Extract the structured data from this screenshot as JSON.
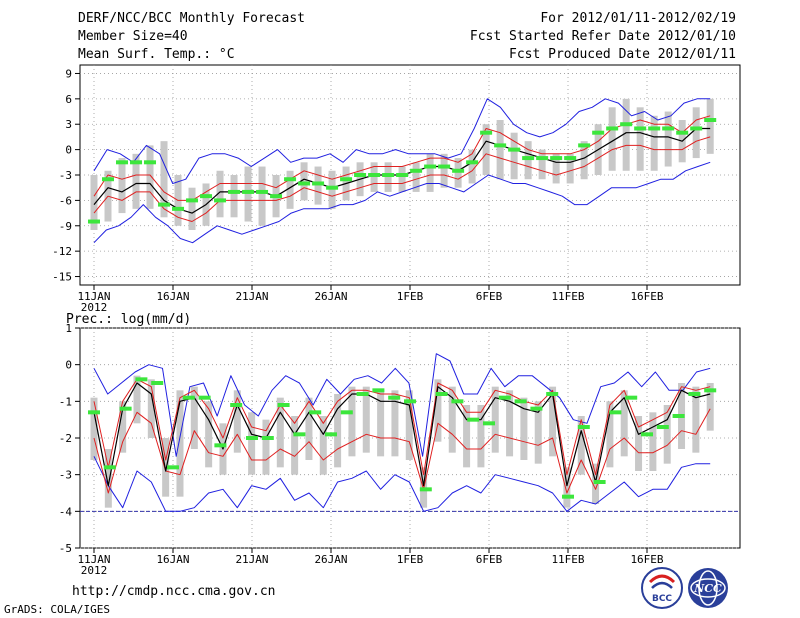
{
  "header": {
    "title": "DERF/NCC/BCC Monthly Forecast",
    "member_size": "Member Size=40",
    "variable": "Mean Surf. Temp.: °C",
    "period": "For 2012/01/11-2012/02/19",
    "started": "Fcst Started Refer Date 2012/01/10",
    "produced": "Fcst Produced Date 2012/01/11"
  },
  "footer": {
    "url": "http://cmdp.ncc.cma.gov.cn",
    "grads": "GrADS: COLA/IGES",
    "logo_bcc": "BCC",
    "logo_ncc": "NCC"
  },
  "colors": {
    "mean": "#000000",
    "spread": "#e02020",
    "envelope": "#2020e0",
    "box": "#c8c8c8",
    "observed": "#3ce63c",
    "grid": "#999999",
    "baseline": "#3333aa"
  },
  "chart_data": [
    {
      "type": "line",
      "title": "Mean Surf. Temp.: °C",
      "xlabel": "",
      "ylabel": "",
      "x_ticks": [
        "11JAN",
        "16JAN",
        "21JAN",
        "26JAN",
        "1FEB",
        "6FEB",
        "11FEB",
        "16FEB"
      ],
      "year_label": "2012",
      "y_ticks": [
        "9",
        "6",
        "3",
        "0",
        "-3",
        "-6",
        "-9",
        "-12",
        "-15"
      ],
      "ylim": [
        -16,
        10
      ],
      "days": 40,
      "series": [
        {
          "name": "max",
          "values": [
            -11,
            -9.5,
            -9,
            -8,
            -6.5,
            -8,
            -9,
            -10.5,
            -11,
            -10,
            -9,
            -9.5,
            -10,
            -9.5,
            -9,
            -8.5,
            -7.5,
            -7,
            -7,
            -7,
            -6.5,
            -6.5,
            -6,
            -5,
            -5.5,
            -5,
            -4.5,
            -4,
            -4,
            -4.5,
            -5,
            -4,
            -3,
            -3.5,
            -4,
            -4,
            -4.5,
            -5,
            -5.5,
            -6.5,
            -6.5,
            -5.5,
            -4.5,
            -4.5,
            -4.5,
            -4,
            -3.5,
            -3.5,
            -2.5,
            -2,
            -1.5
          ]
        },
        {
          "name": "min",
          "values": [
            -2.5,
            0,
            -0.5,
            -1.5,
            0.5,
            -0.5,
            -4,
            -3.5,
            -1,
            -0.5,
            -0.5,
            -1,
            -2,
            -1,
            0,
            -1.5,
            -1,
            -1,
            -0.5,
            -1.5,
            0,
            -0.5,
            -0.5,
            0,
            -0.5,
            -0.5,
            -0.5,
            -1,
            -0.5,
            2.5,
            6,
            5,
            3,
            2,
            1.5,
            2,
            3,
            4.5,
            5,
            6,
            5.5,
            4,
            4.5,
            3.5,
            4,
            5.5,
            6,
            6
          ]
        },
        {
          "name": "mean",
          "values": [
            -6.5,
            -4.5,
            -5,
            -4,
            -4,
            -6,
            -7,
            -7.5,
            -6.5,
            -5,
            -5,
            -5,
            -5,
            -5.5,
            -4.5,
            -3.5,
            -4,
            -4.5,
            -4,
            -3.5,
            -3,
            -3,
            -3,
            -2.5,
            -2,
            -2,
            -2.5,
            -1.5,
            1,
            0.5,
            0,
            -0.5,
            -1,
            -1.5,
            -1.5,
            -1,
            0,
            1,
            2,
            2,
            1.5,
            1.5,
            1,
            2.5,
            2.5
          ]
        },
        {
          "name": "upper",
          "values": [
            -5.5,
            -3,
            -3.5,
            -3,
            -3,
            -5,
            -6,
            -6,
            -5,
            -4,
            -4,
            -4,
            -4,
            -4.5,
            -3.5,
            -2.5,
            -3,
            -3.5,
            -3,
            -2.5,
            -2,
            -2,
            -2,
            -1.5,
            -1,
            -1,
            -1.5,
            -0.5,
            2.5,
            2,
            1,
            0,
            -0.5,
            -0.5,
            -0.5,
            0,
            1,
            2.5,
            3,
            3.5,
            3,
            3,
            2,
            3.5,
            4
          ]
        },
        {
          "name": "lower",
          "values": [
            -7.5,
            -5.5,
            -6,
            -5,
            -5,
            -7,
            -8,
            -8.5,
            -7.5,
            -6,
            -6,
            -6,
            -6,
            -6,
            -5.5,
            -4.5,
            -5,
            -5.5,
            -5,
            -4.5,
            -4,
            -4,
            -4,
            -3.5,
            -3,
            -3,
            -3.5,
            -2.5,
            -0.5,
            -1,
            -1.5,
            -2,
            -2.5,
            -3,
            -2.5,
            -2,
            -1,
            0,
            0.5,
            0.5,
            0,
            0,
            0,
            1,
            1.5
          ]
        },
        {
          "name": "box_top",
          "values": [
            -3,
            -2.5,
            -1,
            -0.5,
            0.5,
            1,
            -3,
            -4.5,
            -4,
            -2.5,
            -3,
            -2,
            -2,
            -3,
            -2.5,
            -1.5,
            -2,
            -2.5,
            -2,
            -1.5,
            -1.5,
            -1.5,
            -2,
            -1.5,
            -0.5,
            -0.5,
            -1,
            0,
            3,
            3.5,
            2,
            1,
            0,
            -0.5,
            -0.5,
            1,
            3,
            5,
            6,
            5,
            4,
            4.5,
            3.5,
            5,
            6
          ]
        },
        {
          "name": "box_bottom",
          "values": [
            -9.5,
            -8.5,
            -7.5,
            -7,
            -7,
            -8,
            -9,
            -9.5,
            -9,
            -8,
            -8,
            -8.5,
            -9,
            -8,
            -7,
            -6,
            -6.5,
            -7,
            -6,
            -5.5,
            -5,
            -5,
            -5,
            -5,
            -5,
            -4.5,
            -4.5,
            -4,
            -3,
            -3.5,
            -3.5,
            -3.5,
            -3.5,
            -4,
            -4,
            -3.5,
            -3,
            -2.5,
            -2.5,
            -2.5,
            -2.5,
            -2,
            -1.5,
            -1,
            -0.5
          ]
        },
        {
          "name": "observed",
          "values": [
            -8.5,
            -3.5,
            -1.5,
            -1.5,
            -1.5,
            -6.5,
            -7,
            -6,
            -5.5,
            -6,
            -5,
            -5,
            -5,
            -5.5,
            -3.5,
            -4,
            -4,
            -4.5,
            -3.5,
            -3,
            -3,
            -3,
            -3,
            -2.5,
            -2,
            -2,
            -2.5,
            -1.5,
            2,
            0.5,
            0,
            -1,
            -1,
            -1,
            -1,
            0.5,
            2,
            2.5,
            3,
            2.5,
            2.5,
            2.5,
            2,
            2.5,
            3.5
          ]
        }
      ]
    },
    {
      "type": "line",
      "title": "Prec.: log(mm/d)",
      "xlabel": "",
      "ylabel": "",
      "x_ticks": [
        "11JAN",
        "16JAN",
        "21JAN",
        "26JAN",
        "1FEB",
        "6FEB",
        "11FEB",
        "16FEB"
      ],
      "year_label": "2012",
      "y_ticks": [
        "1",
        "0",
        "-1",
        "-2",
        "-3",
        "-4",
        "-5"
      ],
      "ylim": [
        -5,
        1
      ],
      "days": 40,
      "baseline": -4,
      "series": [
        {
          "name": "max",
          "values": [
            -0.1,
            -0.8,
            -0.5,
            -0.2,
            0,
            -0.1,
            -2.5,
            -0.6,
            -0.5,
            -1.4,
            -0.3,
            -1.1,
            -1.4,
            -0.7,
            -0.3,
            -0.5,
            -1.1,
            -0.4,
            -0.8,
            -0.4,
            -0.3,
            -0.5,
            -0.1,
            -0.5,
            -2.5,
            0.3,
            0.1,
            -0.8,
            -0.8,
            -0.1,
            -0.6,
            -0.3,
            -0.3,
            -0.6,
            -0.9,
            -1.5,
            -1.6,
            -0.6,
            -0.5,
            -0.2,
            -0.6,
            -0.2,
            -0.7,
            -0.7,
            -0.2,
            -0.1
          ]
        },
        {
          "name": "mean",
          "values": [
            -1.3,
            -3.3,
            -1.2,
            -0.5,
            -0.8,
            -2.9,
            -1,
            -0.9,
            -1.5,
            -2.3,
            -1.1,
            -1.9,
            -2,
            -1.3,
            -1.9,
            -1.3,
            -1.9,
            -1.2,
            -0.8,
            -0.8,
            -1,
            -1,
            -1.1,
            -3.3,
            -0.6,
            -0.9,
            -1.5,
            -1.5,
            -0.9,
            -1,
            -1.2,
            -1.3,
            -0.8,
            -3.3,
            -1.8,
            -3.2,
            -1.3,
            -0.9,
            -1.9,
            -1.7,
            -1.5,
            -0.7,
            -0.9,
            -0.8
          ]
        },
        {
          "name": "upper",
          "values": [
            -1,
            -2.8,
            -1,
            -0.4,
            -0.6,
            -2.6,
            -0.9,
            -0.7,
            -1.2,
            -2,
            -0.9,
            -1.7,
            -1.8,
            -1.1,
            -1.6,
            -1,
            -1.6,
            -1,
            -0.7,
            -0.7,
            -0.8,
            -0.8,
            -0.9,
            -3,
            -0.5,
            -0.7,
            -1.3,
            -1.3,
            -0.7,
            -0.8,
            -1,
            -1.1,
            -0.7,
            -3,
            -1.5,
            -3,
            -1.1,
            -0.7,
            -1.7,
            -1.5,
            -1.3,
            -0.6,
            -0.7,
            -0.6
          ]
        },
        {
          "name": "lower",
          "values": [
            -2,
            -3.5,
            -2.1,
            -1.3,
            -1.6,
            -2.9,
            -3,
            -1.8,
            -2.4,
            -2.5,
            -1.9,
            -2.6,
            -2.6,
            -2.3,
            -2.5,
            -2.1,
            -2.6,
            -2.3,
            -2.1,
            -1.9,
            -2,
            -2,
            -2.1,
            -3.4,
            -1.6,
            -1.9,
            -2.3,
            -2.3,
            -1.9,
            -2,
            -2.1,
            -2.2,
            -2,
            -3.5,
            -2.6,
            -3.4,
            -2.3,
            -2,
            -2.4,
            -2.4,
            -2.2,
            -1.8,
            -1.9,
            -1.2
          ]
        },
        {
          "name": "min",
          "values": [
            -2.5,
            -3.3,
            -3.9,
            -2.9,
            -3.2,
            -4,
            -4,
            -3.9,
            -3.5,
            -3.4,
            -3.9,
            -3.3,
            -3.4,
            -3.1,
            -3.7,
            -3.5,
            -3.9,
            -3.2,
            -3.1,
            -2.9,
            -3.4,
            -3,
            -3.2,
            -4,
            -3.9,
            -3.5,
            -3.3,
            -3.5,
            -3,
            -3.1,
            -3.2,
            -3.3,
            -3.5,
            -4,
            -3.7,
            -3.8,
            -3.5,
            -3.2,
            -3.6,
            -3.4,
            -3.4,
            -2.8,
            -2.7,
            -2.7
          ]
        },
        {
          "name": "box_top",
          "values": [
            -0.9,
            -2.3,
            -1,
            -0.3,
            -0.4,
            -2,
            -0.7,
            -0.6,
            -1,
            -1.6,
            -0.7,
            -1.3,
            -1.5,
            -0.9,
            -1.4,
            -0.9,
            -1.4,
            -0.8,
            -0.6,
            -0.6,
            -0.7,
            -0.7,
            -0.7,
            -2.8,
            -0.4,
            -0.6,
            -1.1,
            -1.1,
            -0.6,
            -0.7,
            -0.9,
            -1,
            -0.6,
            -2.8,
            -1.4,
            -2.7,
            -1,
            -0.7,
            -1.4,
            -1.3,
            -1.1,
            -0.5,
            -0.6,
            -0.5
          ]
        },
        {
          "name": "box_bottom",
          "values": [
            -2.6,
            -3.9,
            -2.4,
            -1.6,
            -2,
            -3.6,
            -3.6,
            -2.3,
            -2.8,
            -3,
            -2.4,
            -3,
            -3,
            -2.8,
            -3,
            -2.6,
            -3,
            -2.8,
            -2.5,
            -2.4,
            -2.5,
            -2.5,
            -2.6,
            -3.9,
            -2.1,
            -2.4,
            -2.8,
            -2.8,
            -2.4,
            -2.5,
            -2.6,
            -2.7,
            -2.5,
            -3.9,
            -3,
            -3.8,
            -2.8,
            -2.5,
            -2.9,
            -2.9,
            -2.7,
            -2.3,
            -2.4,
            -1.8
          ]
        },
        {
          "name": "observed",
          "values": [
            -1.3,
            -2.8,
            -1.2,
            -0.4,
            -0.5,
            -2.8,
            -0.9,
            -0.9,
            -2.2,
            -1.1,
            -2,
            -2,
            -1.1,
            -1.9,
            -1.3,
            -1.9,
            -1.3,
            -0.8,
            -0.7,
            -0.9,
            -1,
            -3.4,
            -0.8,
            -1,
            -1.5,
            -1.6,
            -0.9,
            -1,
            -1.2,
            -0.8,
            -3.6,
            -1.7,
            -3.2,
            -1.3,
            -0.9,
            -1.9,
            -1.7,
            -1.4,
            -0.8,
            -0.7
          ]
        }
      ]
    }
  ]
}
